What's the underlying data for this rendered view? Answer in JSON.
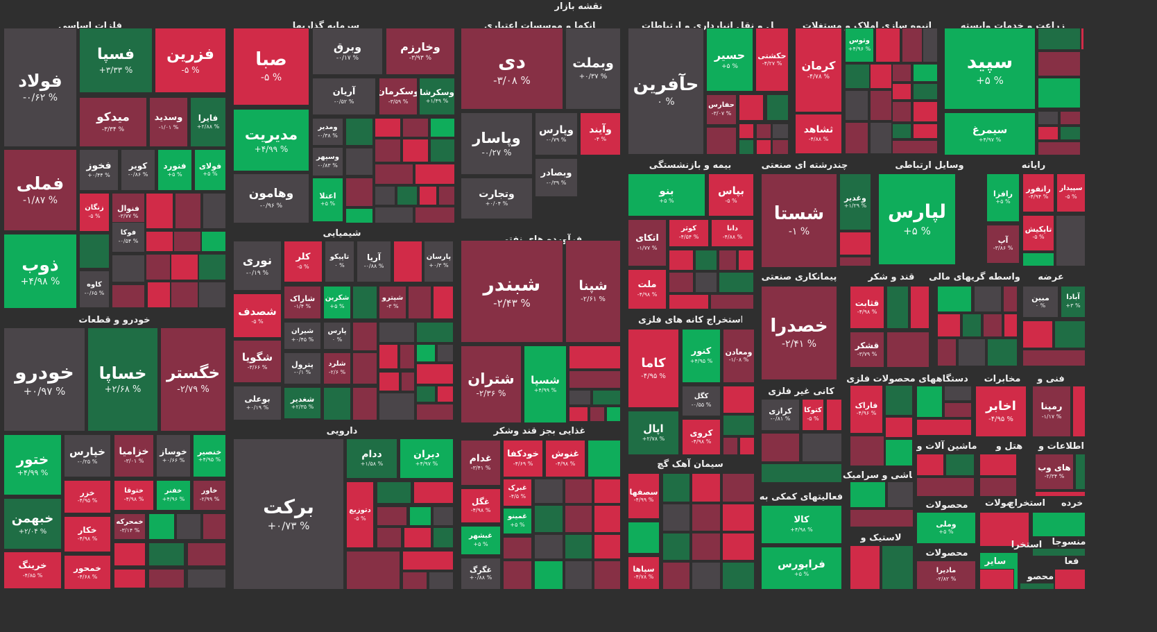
{
  "title": "نقشه بازار",
  "legend_colors": {
    "strong_up": "#0fad5b",
    "up": "#1f6e45",
    "neutral": "#4a4549",
    "down": "#873045",
    "strong_down": "#d12b48"
  },
  "chart_data": {
    "type": "treemap",
    "sectors": [
      {
        "id": "s1",
        "name": "فلزات اساسی",
        "tiles": [
          {
            "symbol": "فولاد",
            "change": "-۰/۶۲ %"
          },
          {
            "symbol": "فسپا",
            "change": "+۳/۳۳ %"
          },
          {
            "symbol": "فزرین",
            "change": "-۵ %"
          },
          {
            "symbol": "میدکو",
            "change": "-۳/۳۴ %"
          },
          {
            "symbol": "وسدید",
            "change": "-۱/۰۱ %"
          },
          {
            "symbol": "فایرا",
            "change": "+۲/۸۸ %"
          },
          {
            "symbol": "فملی",
            "change": "-۱/۸۷ %"
          },
          {
            "symbol": "فخوز",
            "change": "+۰/۴۴ %"
          },
          {
            "symbol": "کویر",
            "change": "-۰/۸۶ %"
          },
          {
            "symbol": "فنورد",
            "change": "+۵ %"
          },
          {
            "symbol": "فولای",
            "change": "+۵ %"
          },
          {
            "symbol": "زنگان",
            "change": "-۵ %"
          },
          {
            "symbol": "فنوال",
            "change": "-۳/۷۷ %"
          },
          {
            "symbol": "فوکا",
            "change": "-۰/۵۴ %"
          },
          {
            "symbol": "ذوب",
            "change": "+۴/۹۸ %"
          },
          {
            "symbol": "کاوه",
            "change": "-۰/۶۵ %"
          }
        ]
      },
      {
        "id": "s2",
        "name": "سرمایه گذاریها",
        "tiles": [
          {
            "symbol": "صبا",
            "change": "-۵ %"
          },
          {
            "symbol": "وبرق",
            "change": "-۰/۱۷ %"
          },
          {
            "symbol": "وخارزم",
            "change": "-۳/۹۳ %"
          },
          {
            "symbol": "آریان",
            "change": "-۰/۵۲ %"
          },
          {
            "symbol": "وسکرمان",
            "change": "-۳/۵۹ %"
          },
          {
            "symbol": "وسکرشا",
            "change": "+۱/۴۹ %"
          },
          {
            "symbol": "مدیریت",
            "change": "+۴/۹۹ %"
          },
          {
            "symbol": "ومدیر",
            "change": "-۰/۳۸ %"
          },
          {
            "symbol": "وسپهر",
            "change": "-۰/۸۳ %"
          },
          {
            "symbol": "وهامون",
            "change": "-۰/۹۶ %"
          },
          {
            "symbol": "اعتلا",
            "change": "+۵ %"
          }
        ]
      },
      {
        "id": "s3",
        "name": "بانکها و موسسات اعتباری",
        "tiles": [
          {
            "symbol": "دی",
            "change": "-۳/۰۸ %"
          },
          {
            "symbol": "وبملت",
            "change": "+۰/۳۷ %"
          },
          {
            "symbol": "وپاسار",
            "change": "-۰/۲۷ %"
          },
          {
            "symbol": "وپارس",
            "change": "-۰/۷۹ %"
          },
          {
            "symbol": "وآیند",
            "change": "-۴ %"
          },
          {
            "symbol": "وبصادر",
            "change": "-۰/۳۹ %"
          },
          {
            "symbol": "وتجارت",
            "change": "+۰/۰۴ %"
          }
        ]
      },
      {
        "id": "s4",
        "name": "حمل و نقل انبارداری و ارتباطات",
        "tiles": [
          {
            "symbol": "حآفرین",
            "change": "۰ %"
          },
          {
            "symbol": "حسیر",
            "change": "+۵ %"
          },
          {
            "symbol": "حکشتی",
            "change": "-۴/۲۷ %"
          },
          {
            "symbol": "حفارس",
            "change": "-۳/۰۷ %"
          }
        ]
      },
      {
        "id": "s5",
        "name": "انبوه سازی املاک و مستغلات",
        "tiles": [
          {
            "symbol": "وتوس",
            "change": "+۴/۹۶ %"
          },
          {
            "symbol": "کرمان",
            "change": "-۴/۷۸ %"
          },
          {
            "symbol": "ثشاهد",
            "change": "-۴/۸۸ %"
          }
        ]
      },
      {
        "id": "s6",
        "name": "زراعت و خدمات وابسته",
        "tiles": [
          {
            "symbol": "سپید",
            "change": "+۵ %"
          },
          {
            "symbol": "سیمرغ",
            "change": "+۴/۹۷ %"
          }
        ]
      },
      {
        "id": "s7",
        "name": "خودرو و قطعات",
        "tiles": [
          {
            "symbol": "خودرو",
            "change": "+۰/۹۷ %"
          },
          {
            "symbol": "خساپا",
            "change": "+۲/۶۸ %"
          },
          {
            "symbol": "خگستر",
            "change": "-۲/۷۹ %"
          },
          {
            "symbol": "ختور",
            "change": "+۴/۹۹ %"
          },
          {
            "symbol": "خپارس",
            "change": "-۰/۲۵ %"
          },
          {
            "symbol": "خزامیا",
            "change": "-۳/۰۱ %"
          },
          {
            "symbol": "خوساز",
            "change": "+۰/۶۶ %"
          },
          {
            "symbol": "خنصیر",
            "change": "+۴/۹۵ %"
          },
          {
            "symbol": "خزر",
            "change": "-۴/۹۵ %"
          },
          {
            "symbol": "ختوقا",
            "change": "-۴/۹۸ %"
          },
          {
            "symbol": "خفنر",
            "change": "+۴/۹۶ %"
          },
          {
            "symbol": "خاور",
            "change": "-۲/۹۹ %"
          },
          {
            "symbol": "خبهمن",
            "change": "+۲/۰۴ %"
          },
          {
            "symbol": "خکار",
            "change": "-۴/۹۸ %"
          },
          {
            "symbol": "خمحرکه",
            "change": "-۳/۱۴ %"
          },
          {
            "symbol": "خرینگ",
            "change": "-۴/۸۵ %"
          },
          {
            "symbol": "خمحور",
            "change": "-۴/۶۸ %"
          }
        ]
      },
      {
        "id": "s8",
        "name": "شیمیایی",
        "tiles": [
          {
            "symbol": "نوری",
            "change": "-۰/۱۹ %"
          },
          {
            "symbol": "کلر",
            "change": "-۵ %"
          },
          {
            "symbol": "تاپیکو",
            "change": "۰ %"
          },
          {
            "symbol": "آریا",
            "change": "-۰/۸۸ %"
          },
          {
            "symbol": "پارسان",
            "change": "+۰/۳ %"
          },
          {
            "symbol": "شصدف",
            "change": "-۵ %"
          },
          {
            "symbol": "شاراک",
            "change": "-۱/۴ %"
          },
          {
            "symbol": "شکربن",
            "change": "+۵ %"
          },
          {
            "symbol": "شپترو",
            "change": "-۳ %"
          },
          {
            "symbol": "شیران",
            "change": "+۰/۴۵ %"
          },
          {
            "symbol": "پارس",
            "change": "۰ %"
          },
          {
            "symbol": "شگویا",
            "change": "-۳/۶۶ %"
          },
          {
            "symbol": "پترول",
            "change": "-۰/۱ %"
          },
          {
            "symbol": "شلرد",
            "change": "-۲/۶ %"
          },
          {
            "symbol": "بوعلی",
            "change": "+۰/۱۹ %"
          },
          {
            "symbol": "شغدیر",
            "change": "+۲/۳۵ %"
          }
        ]
      },
      {
        "id": "s9",
        "name": "فرآورده های نفتی",
        "tiles": [
          {
            "symbol": "شبندر",
            "change": "-۲/۴۳ %"
          },
          {
            "symbol": "شپنا",
            "change": "-۲/۶۱ %"
          },
          {
            "symbol": "شتران",
            "change": "-۲/۳۶ %"
          },
          {
            "symbol": "شسپا",
            "change": "+۴/۹۹ %"
          }
        ]
      },
      {
        "id": "s10",
        "name": "دارویی",
        "tiles": [
          {
            "symbol": "برکت",
            "change": "+۰/۷۳ %"
          },
          {
            "symbol": "ددام",
            "change": "+۱/۵۸ %"
          },
          {
            "symbol": "دیران",
            "change": "+۴/۹۷ %"
          },
          {
            "symbol": "دتوزیع",
            "change": "-۵ %"
          }
        ]
      },
      {
        "id": "s11",
        "name": "غذایی بجز قند وشکر",
        "tiles": [
          {
            "symbol": "غدام",
            "change": "-۳/۴۱ %"
          },
          {
            "symbol": "خودکفا",
            "change": "-۴/۶۹ %"
          },
          {
            "symbol": "غنوش",
            "change": "-۴/۹۸ %"
          },
          {
            "symbol": "غگل",
            "change": "-۴/۹۸ %"
          },
          {
            "symbol": "غبرک",
            "change": "-۴/۵ %"
          },
          {
            "symbol": "غمینو",
            "change": "+۵ %"
          },
          {
            "symbol": "غبشهر",
            "change": "+۵ %"
          },
          {
            "symbol": "غگرگ",
            "change": "+۰/۸۸ %"
          }
        ]
      },
      {
        "id": "s12",
        "name": "بیمه و بازنشستگی",
        "tiles": [
          {
            "symbol": "بنو",
            "change": "+۵ %"
          },
          {
            "symbol": "بپاس",
            "change": "-۵ %"
          },
          {
            "symbol": "اتکای",
            "change": "-۱/۷۷ %"
          },
          {
            "symbol": "کوثر",
            "change": "-۴/۵۴ %"
          },
          {
            "symbol": "دانا",
            "change": "-۴/۸۸ %"
          },
          {
            "symbol": "ملت",
            "change": "-۴/۹۸ %"
          }
        ]
      },
      {
        "id": "s13",
        "name": "چندرشته ای صنعتی",
        "tiles": [
          {
            "symbol": "شستا",
            "change": "-۱ %"
          },
          {
            "symbol": "وغدیر",
            "change": "+۱/۲۹ %"
          }
        ]
      },
      {
        "id": "s14",
        "name": "وسایل ارتباطی",
        "tiles": [
          {
            "symbol": "لپارس",
            "change": "+۵ %"
          }
        ]
      },
      {
        "id": "s15",
        "name": "رایانه",
        "tiles": [
          {
            "symbol": "سپیدار",
            "change": "-۵ %"
          },
          {
            "symbol": "رانفور",
            "change": "-۴/۹۴ %"
          },
          {
            "symbol": "رافزا",
            "change": "+۵ %"
          },
          {
            "symbol": "تاپکیش",
            "change": "-۵ %"
          },
          {
            "symbol": "آپ",
            "change": "-۳/۸۶ %"
          }
        ]
      },
      {
        "id": "s16",
        "name": "استخراج کانه های فلزی",
        "tiles": [
          {
            "symbol": "کاما",
            "change": "-۴/۹۵ %"
          },
          {
            "symbol": "کنور",
            "change": "+۴/۹۵ %"
          },
          {
            "symbol": "ومعادن",
            "change": "-۱/۰۸ %"
          },
          {
            "symbol": "کگل",
            "change": "-۰/۵۵ %"
          },
          {
            "symbol": "اپال",
            "change": "+۲/۷۸ %"
          },
          {
            "symbol": "کروی",
            "change": "-۴/۹۸ %"
          }
        ]
      },
      {
        "id": "s17",
        "name": "پیمانکاری صنعتی",
        "tiles": [
          {
            "symbol": "خصدرا",
            "change": "-۲/۴۱ %"
          }
        ]
      },
      {
        "id": "s18",
        "name": "قند و شکر",
        "tiles": [
          {
            "symbol": "قثابت",
            "change": "-۴/۹۸ %"
          },
          {
            "symbol": "قشکر",
            "change": "-۳/۷۹ %"
          }
        ]
      },
      {
        "id": "s19",
        "name": "واسطه گریهای مالی",
        "tiles": []
      },
      {
        "id": "s20",
        "name": "عرضه",
        "tiles": [
          {
            "symbol": "مبین",
            "change": "۰ %"
          },
          {
            "symbol": "آبادا",
            "change": "+۳ %"
          }
        ]
      },
      {
        "id": "s21",
        "name": "کانی غیر فلزی",
        "tiles": [
          {
            "symbol": "کرازی",
            "change": "-۰/۸۱ %"
          },
          {
            "symbol": "کتوکا",
            "change": "-۵ %"
          }
        ]
      },
      {
        "id": "s22",
        "name": "محصولات فلزی",
        "tiles": [
          {
            "symbol": "فاراک",
            "change": "-۴/۹۶ %"
          }
        ]
      },
      {
        "id": "s23",
        "name": "دستگاههای",
        "tiles": []
      },
      {
        "id": "s24",
        "name": "مخابرات",
        "tiles": [
          {
            "symbol": "اخابر",
            "change": "-۴/۹۵ %"
          }
        ]
      },
      {
        "id": "s25",
        "name": "فنی و",
        "tiles": [
          {
            "symbol": "رمپنا",
            "change": "-۱/۱۷ %"
          }
        ]
      },
      {
        "id": "s26",
        "name": "سیمان آهک گچ",
        "tiles": [
          {
            "symbol": "سصفها",
            "change": "-۴/۹۹ %"
          },
          {
            "symbol": "سپاها",
            "change": "-۴/۷۸ %"
          }
        ]
      },
      {
        "id": "s27",
        "name": "فعالیتهای کمکی به",
        "tiles": [
          {
            "symbol": "کالا",
            "change": "+۴/۹۸ %"
          },
          {
            "symbol": "فرابورس",
            "change": "+۵ %"
          }
        ]
      },
      {
        "id": "s28",
        "name": "ماشین آلات و",
        "tiles": []
      },
      {
        "id": "s29",
        "name": "هتل و",
        "tiles": []
      },
      {
        "id": "s30",
        "name": "اطلاعات و",
        "tiles": [
          {
            "symbol": "های وب",
            "change": "-۲/۳۴ %"
          }
        ]
      },
      {
        "id": "s31",
        "name": "کاشی و سرامیک",
        "tiles": []
      },
      {
        "id": "s32",
        "name": "محصولات",
        "tiles": [
          {
            "symbol": "وملی",
            "change": "+۵ %"
          }
        ]
      },
      {
        "id": "s33",
        "name": "استخراج",
        "tiles": []
      },
      {
        "id": "s34",
        "name": "محصولات",
        "tiles": []
      },
      {
        "id": "s35",
        "name": "خرده",
        "tiles": []
      },
      {
        "id": "s36",
        "name": "لاستیک و",
        "tiles": []
      },
      {
        "id": "s37",
        "name": "محصولات",
        "tiles": [
          {
            "symbol": "مادیرا",
            "change": "-۲/۸۲ %"
          }
        ]
      },
      {
        "id": "s38",
        "name": "منسوجا",
        "tiles": []
      },
      {
        "id": "s39",
        "name": "استخرا",
        "tiles": []
      },
      {
        "id": "s40",
        "name": "سایر",
        "tiles": []
      },
      {
        "id": "s41",
        "name": "فعا",
        "tiles": []
      },
      {
        "id": "s42",
        "name": "محصو",
        "tiles": []
      }
    ]
  }
}
